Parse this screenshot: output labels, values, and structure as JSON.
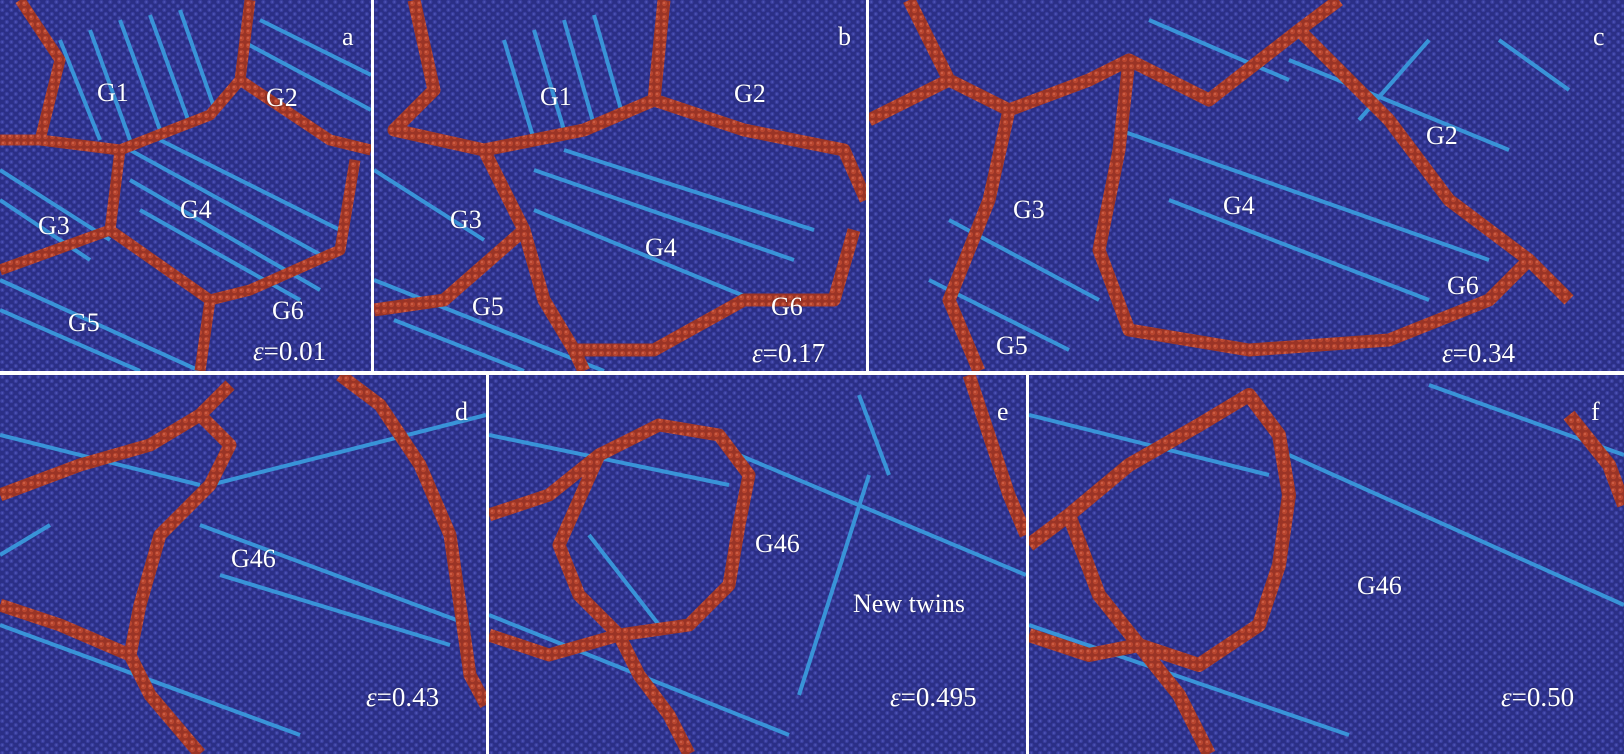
{
  "colors": {
    "matrix": "#2b2f86",
    "atoms_dark": "#1f236e",
    "twin_boundary": "#3a9ee0",
    "grain_boundary": "#a8392a"
  },
  "panels": [
    {
      "id": "a",
      "letter": "a",
      "strain_symbol": "ε",
      "strain_value": "=0.01",
      "labels": [
        "G1",
        "G2",
        "G3",
        "G4",
        "G5",
        "G6"
      ]
    },
    {
      "id": "b",
      "letter": "b",
      "strain_symbol": "ε",
      "strain_value": "=0.17",
      "labels": [
        "G1",
        "G2",
        "G3",
        "G4",
        "G5",
        "G6"
      ]
    },
    {
      "id": "c",
      "letter": "c",
      "strain_symbol": "ε",
      "strain_value": "=0.34",
      "labels": [
        "G2",
        "G3",
        "G4",
        "G5",
        "G6"
      ]
    },
    {
      "id": "d",
      "letter": "d",
      "strain_symbol": "ε",
      "strain_value": "=0.43",
      "labels": [
        "G46"
      ]
    },
    {
      "id": "e",
      "letter": "e",
      "strain_symbol": "ε",
      "strain_value": "=0.495",
      "labels": [
        "G46",
        "New twins"
      ]
    },
    {
      "id": "f",
      "letter": "f",
      "strain_symbol": "ε",
      "strain_value": "=0.50",
      "labels": [
        "G46"
      ]
    }
  ]
}
